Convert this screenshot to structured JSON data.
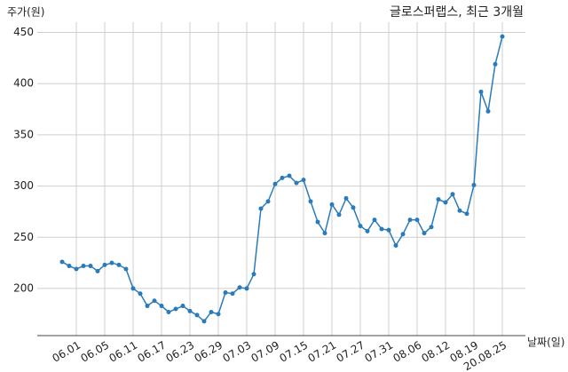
{
  "chart_data": {
    "type": "line",
    "title": "글로스퍼랩스, 최근 3개월",
    "y_label": "주가(원)",
    "x_label": "날짜(일)",
    "categories": [
      null,
      null,
      "06.01",
      null,
      null,
      null,
      "06.05",
      null,
      null,
      null,
      "06.11",
      null,
      null,
      null,
      "06.17",
      null,
      null,
      null,
      "06.23",
      null,
      null,
      null,
      "06.29",
      null,
      null,
      null,
      "07.03",
      null,
      null,
      null,
      "07.09",
      null,
      null,
      null,
      "07.15",
      null,
      null,
      null,
      "07.21",
      null,
      null,
      null,
      "07.27",
      null,
      null,
      null,
      "07.31",
      null,
      null,
      null,
      "08.06",
      null,
      null,
      null,
      "08.12",
      null,
      null,
      null,
      "08.19",
      null,
      null,
      null,
      "20.08.25"
    ],
    "series": [
      {
        "name": "주가",
        "color": "#2b7bb9",
        "values": [
          226,
          222,
          219,
          222,
          222,
          217,
          223,
          225,
          223,
          219,
          200,
          195,
          183,
          188,
          183,
          177,
          180,
          183,
          178,
          174,
          168,
          177,
          175,
          196,
          195,
          201,
          200,
          214,
          278,
          285,
          302,
          308,
          310,
          303,
          306,
          285,
          265,
          254,
          282,
          272,
          288,
          279,
          261,
          256,
          267,
          258,
          257,
          242,
          253,
          267,
          267,
          254,
          260,
          287,
          284,
          292,
          276,
          273,
          301,
          392,
          373,
          419,
          446
        ]
      }
    ],
    "ylim": [
      154,
      460
    ],
    "yticks": [
      200,
      250,
      300,
      350,
      400,
      450
    ],
    "grid": true
  }
}
